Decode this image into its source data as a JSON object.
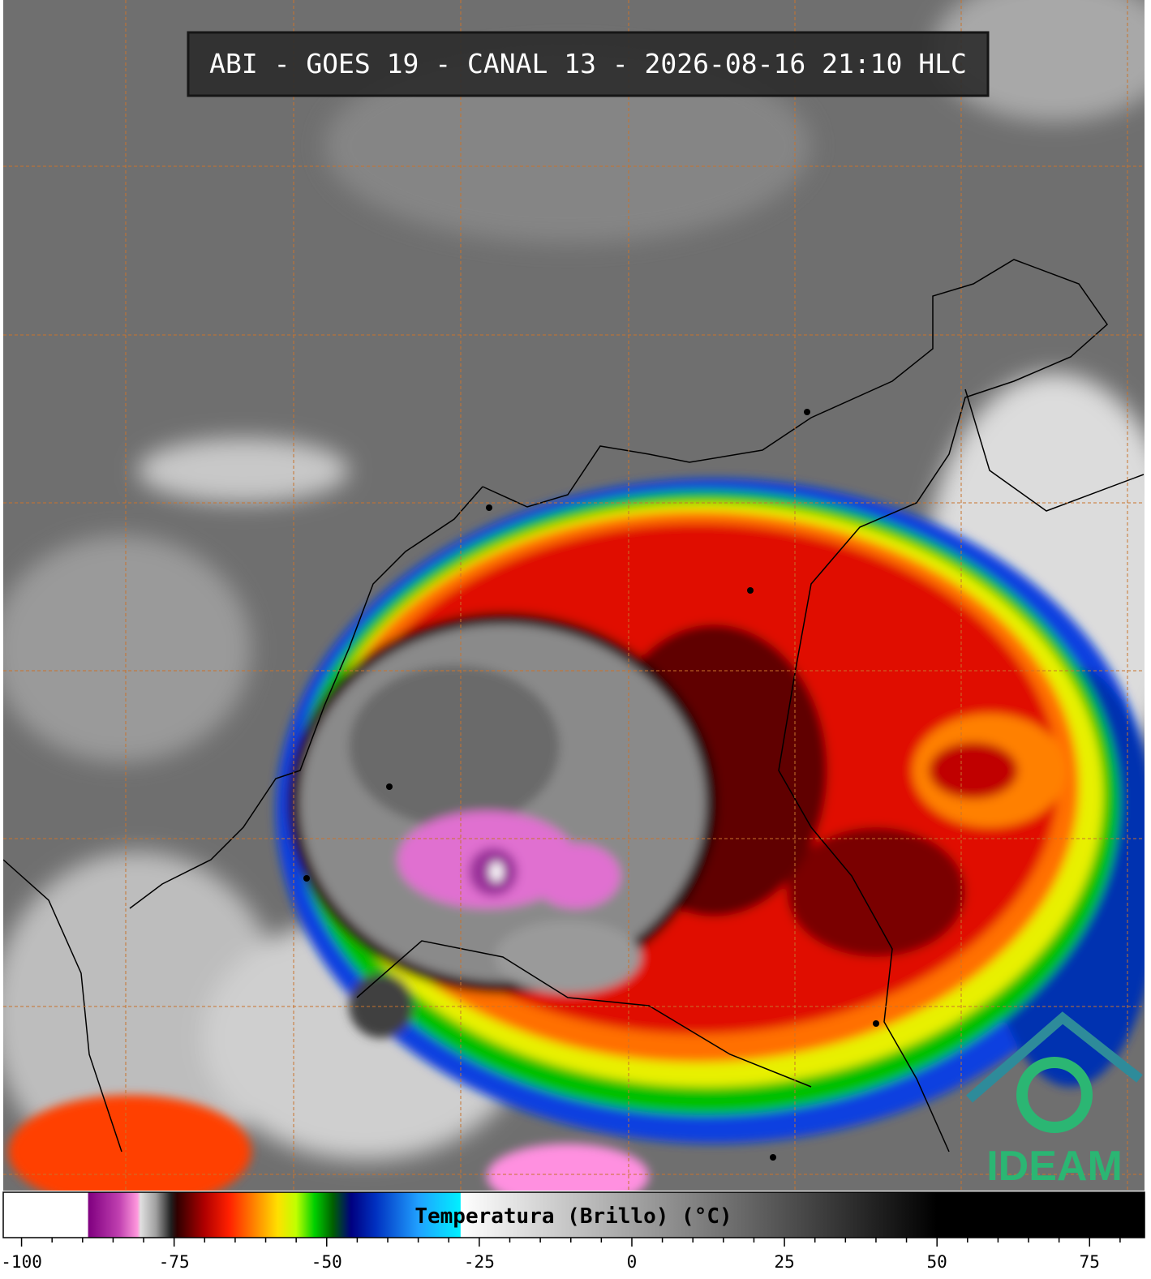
{
  "header": {
    "title": "ABI - GOES 19 - CANAL 13 - 2026-08-16 21:10 HLC"
  },
  "logo": {
    "text": "IDEAM"
  },
  "colorbar": {
    "label": "Temperatura (Brillo) (°C)",
    "xlim": [
      -103,
      84
    ],
    "xticks": [
      -100,
      -75,
      -50,
      -25,
      0,
      25,
      50,
      75
    ],
    "minor_xticks": [
      -95,
      -90,
      -85,
      -80,
      -70,
      -65,
      -60,
      -55,
      -45,
      -40,
      -35,
      -30,
      -20,
      -15,
      -10,
      -5,
      5,
      10,
      15,
      20,
      30,
      35,
      40,
      45,
      55,
      60,
      65,
      70,
      80
    ],
    "stops": [
      {
        "value": -103,
        "color": "#ffffff"
      },
      {
        "value": -89.2,
        "color": "#ffffff"
      },
      {
        "value": -89,
        "color": "#800080"
      },
      {
        "value": -84,
        "color": "#c040b0"
      },
      {
        "value": -81,
        "color": "#ff99dd"
      },
      {
        "value": -80.5,
        "color": "#e0e0e0"
      },
      {
        "value": -78,
        "color": "#a0a0a0"
      },
      {
        "value": -75.5,
        "color": "#202020"
      },
      {
        "value": -74.5,
        "color": "#300000"
      },
      {
        "value": -70,
        "color": "#b00000"
      },
      {
        "value": -66,
        "color": "#ff2000"
      },
      {
        "value": -62,
        "color": "#ff8000"
      },
      {
        "value": -58,
        "color": "#ffe000"
      },
      {
        "value": -55,
        "color": "#c0ff00"
      },
      {
        "value": -52,
        "color": "#00d000"
      },
      {
        "value": -49,
        "color": "#006000"
      },
      {
        "value": -46,
        "color": "#000080"
      },
      {
        "value": -42,
        "color": "#0030c0"
      },
      {
        "value": -35,
        "color": "#20a0ff"
      },
      {
        "value": -28.1,
        "color": "#00f0ff"
      },
      {
        "value": -28,
        "color": "#ffffff"
      },
      {
        "value": 50,
        "color": "#000000"
      },
      {
        "value": 84,
        "color": "#000000"
      }
    ]
  }
}
